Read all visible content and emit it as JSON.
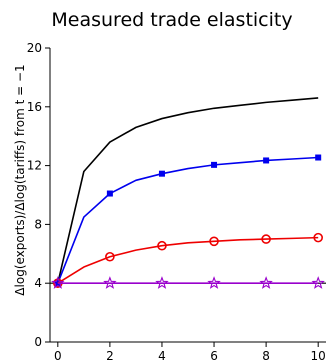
{
  "chart_data": {
    "type": "line",
    "title": "Measured trade elasticity",
    "xlabel": "",
    "ylabel": "Δlog(exports)/Δlog(tariffs)  from t = −1",
    "xlim": [
      -0.3,
      10.3
    ],
    "ylim": [
      0,
      20
    ],
    "x_ticks": [
      0,
      2,
      4,
      6,
      8,
      10
    ],
    "y_ticks": [
      0,
      4,
      8,
      12,
      16,
      20
    ],
    "grid": false,
    "legend": "none",
    "x": [
      0,
      1,
      2,
      3,
      4,
      5,
      6,
      7,
      8,
      9,
      10
    ],
    "series": [
      {
        "color": "#000000",
        "marker": "none",
        "values": [
          4.0,
          11.6,
          13.6,
          14.6,
          15.2,
          15.6,
          15.9,
          16.1,
          16.3,
          16.45,
          16.6
        ]
      },
      {
        "color": "#0000ee",
        "marker": "square",
        "values": [
          4.0,
          8.5,
          10.1,
          11.0,
          11.45,
          11.8,
          12.05,
          12.2,
          12.35,
          12.45,
          12.55
        ]
      },
      {
        "color": "#ee0000",
        "marker": "circle",
        "values": [
          4.0,
          5.1,
          5.8,
          6.25,
          6.55,
          6.75,
          6.85,
          6.95,
          7.0,
          7.05,
          7.1
        ]
      },
      {
        "color": "#9900cc",
        "marker": "star",
        "values": [
          4.0,
          4.0,
          4.0,
          4.0,
          4.0,
          4.0,
          4.0,
          4.0,
          4.0,
          4.0,
          4.0
        ]
      }
    ],
    "reference_line": {
      "y": 4,
      "color": "#000000"
    }
  }
}
